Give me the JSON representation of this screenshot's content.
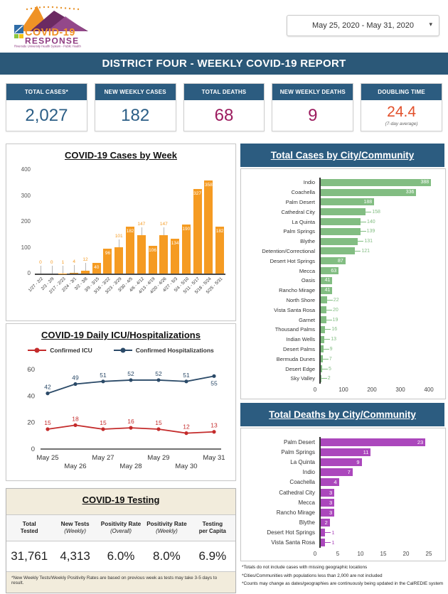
{
  "colors": {
    "header_blue": "#2C5C80",
    "banner_blue": "#2B5878",
    "stat_blue": "#2B5E86",
    "stat_magenta": "#9C1C5F",
    "stat_orange": "#E2502B",
    "bar_orange": "#F59B22",
    "bar_green": "#82BD82",
    "bar_purple": "#AB47BC",
    "icu_red": "#C42B2B",
    "hosp_navy": "#2B4A68"
  },
  "header": {
    "logo_line1": "COVID-19",
    "logo_line2": "RESPONSE",
    "logo_tagline": "Riverside University Health System - Public Health",
    "date_range": "May 25, 2020 - May 31, 2020",
    "banner": "DISTRICT FOUR - WEEKLY COVID-19 REPORT"
  },
  "stats": [
    {
      "label": "TOTAL CASES*",
      "value": "2,027",
      "color": "#2B5E86"
    },
    {
      "label": "NEW WEEKLY CASES",
      "value": "182",
      "color": "#2B5E86"
    },
    {
      "label": "TOTAL DEATHS",
      "value": "68",
      "color": "#9C1C5F"
    },
    {
      "label": "NEW WEEKLY DEATHS",
      "value": "9",
      "color": "#9C1C5F"
    },
    {
      "label": "DOUBLING TIME",
      "value": "24.4",
      "color": "#E2502B",
      "subtitle": "(7-day average)"
    }
  ],
  "chart_data": [
    {
      "id": "cases_by_week",
      "type": "bar",
      "title": "COVID-19 Cases by Week",
      "categories": [
        "1/27 - 2/2",
        "2/3 - 2/9",
        "2/17 - 2/23",
        "2/24 - 3/1",
        "3/2 - 3/8",
        "3/9 - 3/15",
        "3/16 - 3/22",
        "3/23 - 3/29",
        "3/30 - 4/5",
        "4/6 - 4/12",
        "4/13 - 4/19",
        "4/20 - 4/26",
        "4/27 - 5/3",
        "5/4 - 5/10",
        "5/11 - 5/17",
        "5/18 - 5/24",
        "5/25 - 5/31"
      ],
      "values": [
        0,
        0,
        1,
        4,
        12,
        40,
        96,
        101,
        182,
        147,
        106,
        147,
        134,
        190,
        327,
        358,
        182
      ],
      "label_pos": [
        "out",
        "out",
        "out",
        "out",
        "out",
        "in",
        "in",
        "out",
        "in",
        "out",
        "in",
        "out",
        "in",
        "in",
        "in",
        "in",
        "in"
      ],
      "bar_color": "#F59B22",
      "xlabel": "",
      "ylabel": "",
      "ylim": [
        0,
        400
      ],
      "yticks": [
        0,
        100,
        200,
        300,
        400
      ],
      "grid": false
    },
    {
      "id": "total_cases_by_city",
      "type": "bar",
      "orientation": "horizontal",
      "title": "Total Cases by City/Community",
      "categories": [
        "Indio",
        "Coachella",
        "Palm Desert",
        "Cathedral City",
        "La Quinta",
        "Palm Springs",
        "Blythe",
        "Detention/Correctional",
        "Desert Hot Springs",
        "Mecca",
        "Oasis",
        "Rancho Mirage",
        "North Shore",
        "Vista Santa Rosa",
        "Garnet",
        "Thousand Palms",
        "Indian Wells",
        "Desert Palms",
        "Bermuda Dunes",
        "Desert Edge",
        "Sky Valley"
      ],
      "values": [
        388,
        336,
        188,
        158,
        140,
        139,
        131,
        121,
        87,
        63,
        41,
        41,
        22,
        20,
        19,
        16,
        13,
        9,
        7,
        5,
        2
      ],
      "label_pos": [
        "in",
        "in",
        "in",
        "out",
        "out",
        "out",
        "out",
        "out",
        "in",
        "in",
        "in",
        "in",
        "out",
        "out",
        "out",
        "out",
        "out",
        "out",
        "out",
        "out",
        "out"
      ],
      "bar_color": "#82BD82",
      "xlim": [
        0,
        400
      ],
      "xticks": [
        0,
        100,
        200,
        300,
        400
      ],
      "grid": false
    },
    {
      "id": "icu_hospitalizations",
      "type": "line",
      "title": "COVID-19 Daily ICU/Hospitalizations",
      "x": [
        "May 25",
        "May 26",
        "May 27",
        "May 28",
        "May 29",
        "May 30",
        "May 31"
      ],
      "series": [
        {
          "name": "Confirmed ICU",
          "color": "#C42B2B",
          "values": [
            15,
            18,
            15,
            16,
            15,
            12,
            13
          ]
        },
        {
          "name": "Confirmed Hospitalizations",
          "color": "#2B4A68",
          "values": [
            42,
            49,
            51,
            52,
            52,
            51,
            55
          ]
        }
      ],
      "ylim": [
        0,
        60
      ],
      "yticks": [
        0,
        20,
        40,
        60
      ],
      "legend_position": "top",
      "grid": false
    },
    {
      "id": "total_deaths_by_city",
      "type": "bar",
      "orientation": "horizontal",
      "title": "Total Deaths by City/Community",
      "categories": [
        "Palm Desert",
        "Palm Springs",
        "La Quinta",
        "Indio",
        "Coachella",
        "Cathedral City",
        "Mecca",
        "Rancho Mirage",
        "Blythe",
        "Desert Hot Springs",
        "Vista Santa Rosa"
      ],
      "values": [
        23,
        11,
        9,
        7,
        4,
        3,
        3,
        3,
        2,
        1,
        1
      ],
      "label_pos": [
        "in",
        "in",
        "in",
        "in",
        "in",
        "in",
        "in",
        "in",
        "in",
        "out",
        "out"
      ],
      "bar_color": "#AB47BC",
      "xlim": [
        0,
        25
      ],
      "xticks": [
        0,
        5,
        10,
        15,
        20,
        25
      ],
      "grid": false
    }
  ],
  "testing": {
    "title": "COVID-19 Testing",
    "columns": [
      {
        "line1": "Total",
        "line2": "Tested"
      },
      {
        "line1": "New Tests",
        "line2": "(Weekly)"
      },
      {
        "line1": "Positivity Rate",
        "line2": "(Overall)"
      },
      {
        "line1": "Positivity Rate",
        "line2": "(Weekly)"
      },
      {
        "line1": "Testing",
        "line2": "per Capita"
      }
    ],
    "values": [
      "31,761",
      "4,313",
      "6.0%",
      "8.0%",
      "6.9%"
    ],
    "footnote": "*New Weekly Tests/Weekly Positivity Rates are based on previous week as tests may take 3-5 days to result."
  },
  "footnotes": {
    "lines": [
      "*Totals do not include cases with missing geographic locations",
      "*Cities/Communities with populations less than 2,000 are not included",
      "*Counts may change as dates/geographies are continuously being updated in the CalREDIE system"
    ]
  }
}
